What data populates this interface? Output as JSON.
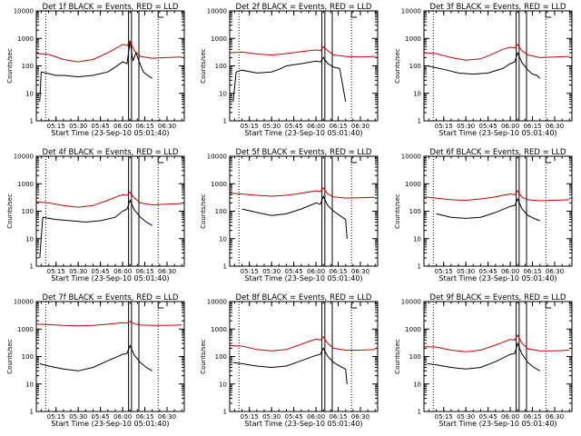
{
  "chart_data": [
    {
      "type": "line",
      "title": "Det 1f BLACK = Events, RED = LLD",
      "xlabel": "Start Time (23-Sep-10 05:01:40)",
      "ylabel": "Counts/sec",
      "yscale": "log",
      "ylim": [
        1,
        10000
      ],
      "xlim": [
        "05:01:40",
        "06:41:40"
      ],
      "x_tick_labels": [
        "05:15",
        "05:30",
        "05:45",
        "06:00",
        "06:15",
        "06:30"
      ],
      "y_tick_labels": [
        "1",
        "10",
        "100",
        "1000",
        "10000"
      ],
      "series": [
        {
          "color": "#000000",
          "x": [
            "05:04",
            "05:05",
            "05:08",
            "05:15",
            "05:20",
            "05:30",
            "05:40",
            "05:50",
            "05:55",
            "06:00",
            "06:03",
            "06:05",
            "06:07",
            "06:09",
            "06:11",
            "06:14",
            "06:17",
            "06:20"
          ],
          "y": [
            5,
            60,
            55,
            45,
            45,
            40,
            45,
            60,
            90,
            140,
            120,
            800,
            150,
            300,
            150,
            60,
            45,
            35
          ]
        },
        {
          "color": "#cc0000",
          "x": [
            "05:02",
            "05:10",
            "05:20",
            "05:30",
            "05:40",
            "05:50",
            "05:55",
            "06:00",
            "06:03",
            "06:05",
            "06:08",
            "06:12",
            "06:20",
            "06:30",
            "06:40"
          ],
          "y": [
            280,
            260,
            170,
            140,
            170,
            300,
            420,
            600,
            550,
            800,
            350,
            220,
            190,
            200,
            210
          ]
        }
      ]
    },
    {
      "type": "line",
      "title": "Det 2f BLACK = Events, RED = LLD",
      "xlabel": "Start Time (23-Sep-10 05:01:40)",
      "ylabel": "Counts/sec",
      "yscale": "log",
      "ylim": [
        1,
        10000
      ],
      "xlim": [
        "05:01:40",
        "06:41:40"
      ],
      "x_tick_labels": [
        "05:15",
        "05:30",
        "05:45",
        "06:00",
        "06:15",
        "06:30"
      ],
      "y_tick_labels": [
        "1",
        "10",
        "100",
        "1000",
        "10000"
      ],
      "series": [
        {
          "color": "#000000",
          "x": [
            "05:04",
            "05:06",
            "05:10",
            "05:20",
            "05:30",
            "05:35",
            "05:40",
            "05:50",
            "06:00",
            "06:03",
            "06:05",
            "06:08",
            "06:12",
            "06:16",
            "06:20"
          ],
          "y": [
            5,
            60,
            70,
            55,
            60,
            75,
            100,
            120,
            150,
            140,
            200,
            120,
            90,
            80,
            5
          ]
        },
        {
          "color": "#cc0000",
          "x": [
            "05:02",
            "05:10",
            "05:20",
            "05:30",
            "05:40",
            "05:50",
            "06:00",
            "06:03",
            "06:05",
            "06:08",
            "06:12",
            "06:20",
            "06:30",
            "06:40"
          ],
          "y": [
            300,
            320,
            270,
            250,
            280,
            330,
            380,
            360,
            500,
            350,
            250,
            220,
            210,
            220
          ]
        }
      ]
    },
    {
      "type": "line",
      "title": "Det 3f BLACK = Events, RED = LLD",
      "xlabel": "Start Time (23-Sep-10 05:01:40)",
      "ylabel": "Counts/sec",
      "yscale": "log",
      "ylim": [
        1,
        10000
      ],
      "xlim": [
        "05:01:40",
        "06:41:40"
      ],
      "x_tick_labels": [
        "05:15",
        "05:30",
        "05:45",
        "06:00",
        "06:15",
        "06:30"
      ],
      "y_tick_labels": [
        "1",
        "10",
        "100",
        "1000",
        "10000"
      ],
      "series": [
        {
          "color": "#000000",
          "x": [
            "05:04",
            "05:08",
            "05:15",
            "05:25",
            "05:35",
            "05:45",
            "05:55",
            "06:00",
            "06:03",
            "06:05",
            "06:08",
            "06:12",
            "06:15",
            "06:18",
            "06:20"
          ],
          "y": [
            100,
            90,
            75,
            55,
            50,
            55,
            80,
            120,
            140,
            300,
            130,
            70,
            50,
            45,
            35
          ]
        },
        {
          "color": "#cc0000",
          "x": [
            "05:02",
            "05:10",
            "05:20",
            "05:30",
            "05:40",
            "05:50",
            "05:55",
            "06:00",
            "06:03",
            "06:05",
            "06:08",
            "06:12",
            "06:20",
            "06:30",
            "06:40"
          ],
          "y": [
            300,
            280,
            200,
            160,
            180,
            300,
            400,
            480,
            450,
            600,
            350,
            250,
            200,
            210,
            220
          ]
        }
      ]
    },
    {
      "type": "line",
      "title": "Det 4f BLACK = Events, RED = LLD",
      "xlabel": "Start Time (23-Sep-10 05:01:40)",
      "ylabel": "Counts/sec",
      "yscale": "log",
      "ylim": [
        1,
        10000
      ],
      "xlim": [
        "05:01:40",
        "06:41:40"
      ],
      "x_tick_labels": [
        "05:15",
        "05:30",
        "05:45",
        "06:00",
        "06:15",
        "06:30"
      ],
      "y_tick_labels": [
        "1",
        "10",
        "100",
        "1000",
        "10000"
      ],
      "series": [
        {
          "color": "#000000",
          "x": [
            "05:04",
            "05:06",
            "05:15",
            "05:25",
            "05:35",
            "05:45",
            "05:55",
            "06:00",
            "06:03",
            "06:05",
            "06:08",
            "06:12",
            "06:16",
            "06:20"
          ],
          "y": [
            2,
            60,
            50,
            45,
            40,
            45,
            60,
            100,
            120,
            250,
            110,
            60,
            40,
            30
          ]
        },
        {
          "color": "#cc0000",
          "x": [
            "05:02",
            "05:10",
            "05:20",
            "05:30",
            "05:40",
            "05:50",
            "05:55",
            "06:00",
            "06:03",
            "06:05",
            "06:08",
            "06:12",
            "06:20",
            "06:30",
            "06:40"
          ],
          "y": [
            220,
            200,
            160,
            140,
            160,
            250,
            320,
            400,
            380,
            500,
            300,
            200,
            170,
            180,
            190
          ]
        }
      ]
    },
    {
      "type": "line",
      "title": "Det 5f BLACK = Events, RED = LLD",
      "xlabel": "Start Time (23-Sep-10 05:01:40)",
      "ylabel": "Counts/sec",
      "yscale": "log",
      "ylim": [
        1,
        10000
      ],
      "xlim": [
        "05:01:40",
        "06:41:40"
      ],
      "x_tick_labels": [
        "05:15",
        "05:30",
        "05:45",
        "06:00",
        "06:15",
        "06:30"
      ],
      "y_tick_labels": [
        "1",
        "10",
        "100",
        "1000",
        "10000"
      ],
      "series": [
        {
          "color": "#000000",
          "x": [
            "05:10",
            "05:20",
            "05:30",
            "05:40",
            "05:50",
            "06:00",
            "06:03",
            "06:05",
            "06:08",
            "06:12",
            "06:16",
            "06:20",
            "06:21"
          ],
          "y": [
            120,
            90,
            70,
            80,
            120,
            200,
            180,
            350,
            160,
            100,
            70,
            50,
            10
          ]
        },
        {
          "color": "#cc0000",
          "x": [
            "05:02",
            "05:10",
            "05:20",
            "05:30",
            "05:40",
            "05:50",
            "05:55",
            "06:00",
            "06:03",
            "06:05",
            "06:08",
            "06:12",
            "06:20",
            "06:30",
            "06:40"
          ],
          "y": [
            450,
            420,
            380,
            350,
            380,
            450,
            500,
            550,
            520,
            700,
            420,
            330,
            300,
            310,
            320
          ]
        }
      ]
    },
    {
      "type": "line",
      "title": "Det 6f BLACK = Events, RED = LLD",
      "xlabel": "Start Time (23-Sep-10 05:01:40)",
      "ylabel": "Counts/sec",
      "yscale": "log",
      "ylim": [
        1,
        10000
      ],
      "xlim": [
        "05:01:40",
        "06:41:40"
      ],
      "x_tick_labels": [
        "05:15",
        "05:30",
        "05:45",
        "06:00",
        "06:15",
        "06:30"
      ],
      "y_tick_labels": [
        "1",
        "10",
        "100",
        "1000",
        "10000"
      ],
      "series": [
        {
          "color": "#000000",
          "x": [
            "05:10",
            "05:20",
            "05:30",
            "05:40",
            "05:50",
            "06:00",
            "06:03",
            "06:05",
            "06:08",
            "06:12",
            "06:16",
            "06:20"
          ],
          "y": [
            80,
            60,
            55,
            60,
            90,
            150,
            160,
            280,
            120,
            70,
            55,
            45
          ]
        },
        {
          "color": "#cc0000",
          "x": [
            "05:02",
            "05:10",
            "05:20",
            "05:30",
            "05:40",
            "05:50",
            "05:55",
            "06:00",
            "06:03",
            "06:05",
            "06:08",
            "06:12",
            "06:20",
            "06:30",
            "06:40"
          ],
          "y": [
            330,
            300,
            260,
            250,
            280,
            330,
            380,
            420,
            400,
            550,
            320,
            260,
            240,
            250,
            260
          ]
        }
      ]
    },
    {
      "type": "line",
      "title": "Det 7f BLACK = Events, RED = LLD",
      "xlabel": "Start Time (23-Sep-10 05:01:40)",
      "ylabel": "Counts/sec",
      "yscale": "log",
      "ylim": [
        1,
        10000
      ],
      "xlim": [
        "05:01:40",
        "06:41:40"
      ],
      "x_tick_labels": [
        "05:15",
        "05:30",
        "05:45",
        "06:00",
        "06:15",
        "06:30"
      ],
      "y_tick_labels": [
        "1",
        "10",
        "100",
        "1000",
        "10000"
      ],
      "series": [
        {
          "color": "#000000",
          "x": [
            "05:04",
            "05:10",
            "05:20",
            "05:30",
            "05:40",
            "05:50",
            "06:00",
            "06:03",
            "06:05",
            "06:08",
            "06:12",
            "06:16",
            "06:20"
          ],
          "y": [
            55,
            45,
            35,
            30,
            40,
            70,
            120,
            130,
            250,
            110,
            60,
            40,
            30
          ]
        },
        {
          "color": "#cc0000",
          "x": [
            "05:02",
            "05:10",
            "05:20",
            "05:30",
            "05:40",
            "05:50",
            "05:55",
            "06:00",
            "06:03",
            "06:05",
            "06:08",
            "06:12",
            "06:20",
            "06:30",
            "06:40"
          ],
          "y": [
            1500,
            1450,
            1350,
            1300,
            1350,
            1500,
            1600,
            1700,
            1650,
            1900,
            1550,
            1400,
            1350,
            1350,
            1400
          ]
        }
      ]
    },
    {
      "type": "line",
      "title": "Det 8f BLACK = Events, RED = LLD",
      "xlabel": "Start Time (23-Sep-10 05:01:40)",
      "ylabel": "Counts/sec",
      "yscale": "log",
      "ylim": [
        1,
        10000
      ],
      "xlim": [
        "05:01:40",
        "06:41:40"
      ],
      "x_tick_labels": [
        "05:15",
        "05:30",
        "05:45",
        "06:00",
        "06:15",
        "06:30"
      ],
      "y_tick_labels": [
        "1",
        "10",
        "100",
        "1000",
        "10000"
      ],
      "series": [
        {
          "color": "#000000",
          "x": [
            "05:04",
            "05:10",
            "05:20",
            "05:30",
            "05:40",
            "05:50",
            "06:00",
            "06:03",
            "06:05",
            "06:08",
            "06:12",
            "06:16",
            "06:20",
            "06:21"
          ],
          "y": [
            60,
            55,
            45,
            40,
            45,
            70,
            110,
            120,
            200,
            100,
            60,
            45,
            35,
            10
          ]
        },
        {
          "color": "#cc0000",
          "x": [
            "05:02",
            "05:10",
            "05:20",
            "05:30",
            "05:40",
            "05:50",
            "05:55",
            "06:00",
            "06:03",
            "06:05",
            "06:08",
            "06:12",
            "06:20",
            "06:30",
            "06:40"
          ],
          "y": [
            250,
            240,
            180,
            160,
            180,
            280,
            350,
            430,
            400,
            520,
            300,
            200,
            170,
            170,
            180
          ]
        }
      ]
    },
    {
      "type": "line",
      "title": "Det 9f BLACK = Events, RED = LLD",
      "xlabel": "Start Time (23-Sep-10 05:01:40)",
      "ylabel": "Counts/sec",
      "yscale": "log",
      "ylim": [
        1,
        10000
      ],
      "xlim": [
        "05:01:40",
        "06:41:40"
      ],
      "x_tick_labels": [
        "05:15",
        "05:30",
        "05:45",
        "06:00",
        "06:15",
        "06:30"
      ],
      "y_tick_labels": [
        "1",
        "10",
        "100",
        "1000",
        "10000"
      ],
      "series": [
        {
          "color": "#000000",
          "x": [
            "05:04",
            "05:10",
            "05:20",
            "05:30",
            "05:40",
            "05:50",
            "06:00",
            "06:03",
            "06:05",
            "06:08",
            "06:12",
            "06:16",
            "06:20"
          ],
          "y": [
            55,
            50,
            40,
            35,
            40,
            65,
            120,
            130,
            300,
            120,
            60,
            40,
            30
          ]
        },
        {
          "color": "#cc0000",
          "x": [
            "05:02",
            "05:10",
            "05:20",
            "05:30",
            "05:40",
            "05:50",
            "05:55",
            "06:00",
            "06:03",
            "06:05",
            "06:08",
            "06:12",
            "06:20",
            "06:30",
            "06:40"
          ],
          "y": [
            230,
            220,
            170,
            150,
            170,
            260,
            330,
            420,
            400,
            600,
            300,
            190,
            160,
            160,
            170
          ]
        }
      ]
    }
  ],
  "markers": {
    "solid_vertical_lines": [
      "06:04",
      "06:06",
      "06:11"
    ],
    "dotted_vertical_lines": [
      "05:08",
      "06:24"
    ],
    "bracket_mark": "06:24"
  }
}
